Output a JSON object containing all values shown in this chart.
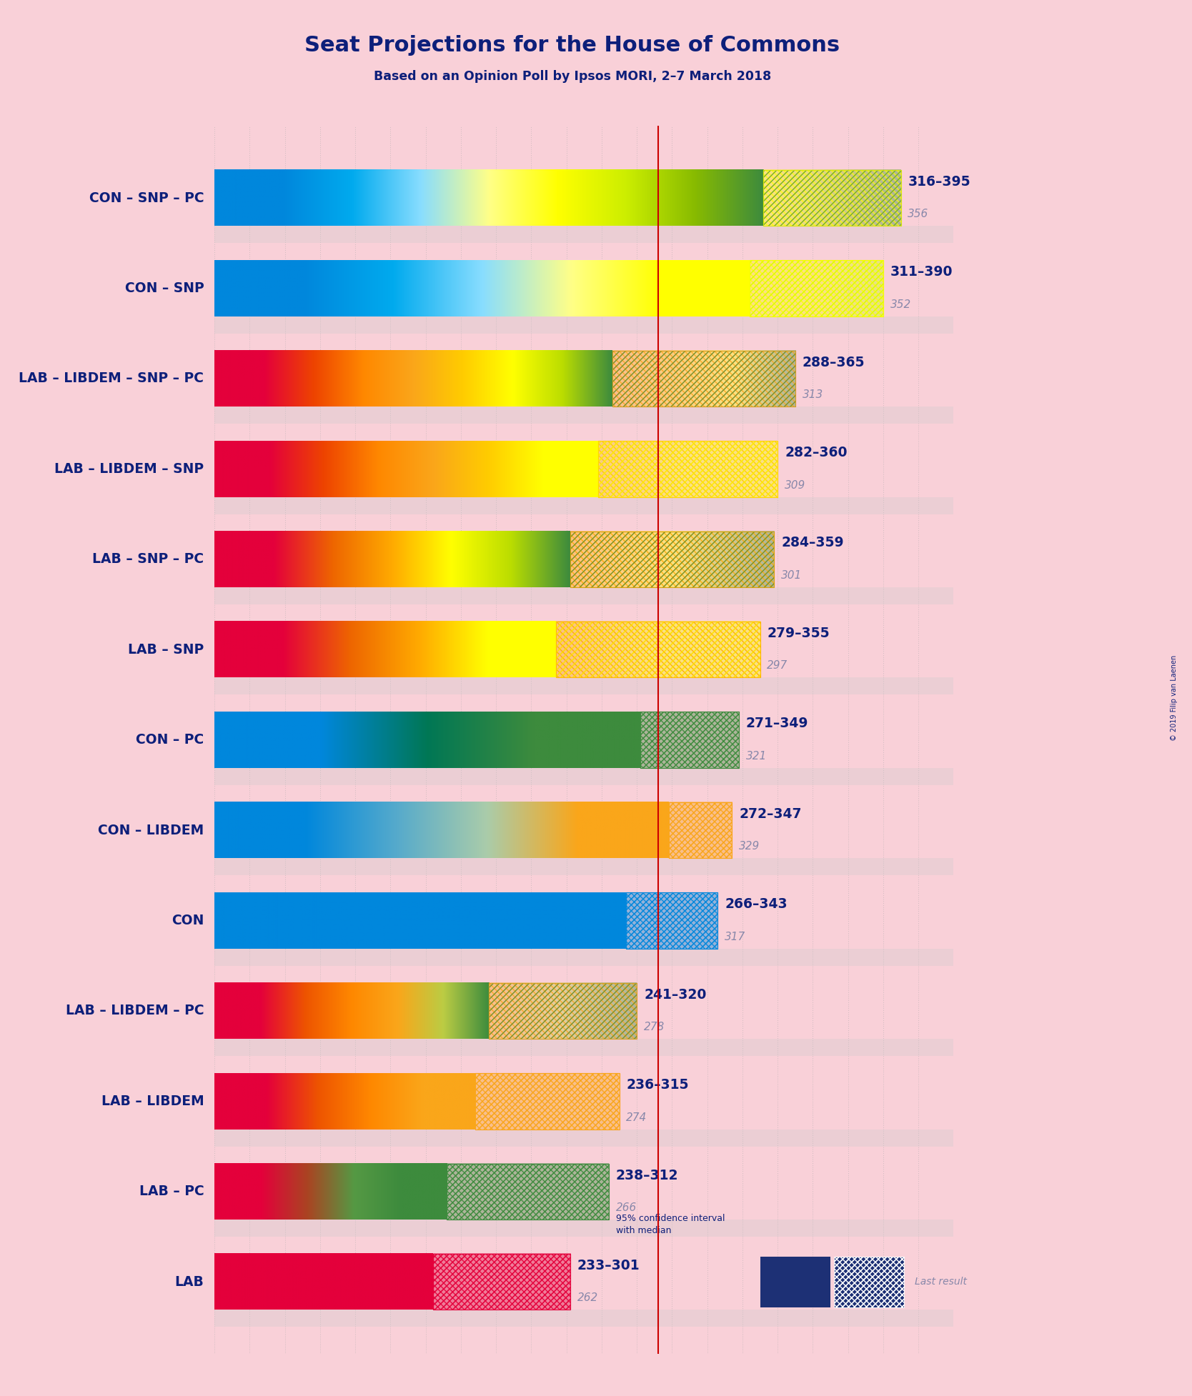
{
  "title": "Seat Projections for the House of Commons",
  "subtitle": "Based on an Opinion Poll by Ipsos MORI, 2–7 March 2018",
  "background_color": "#f9d0d8",
  "title_color": "#0d1f7a",
  "copyright": "© 2019 Filip van Laenen",
  "majority_line": 326,
  "x_min": 200,
  "x_max": 410,
  "coalitions": [
    {
      "label": "CON – SNP – PC",
      "low": 316,
      "median": 356,
      "high": 395,
      "colors": [
        "#0087dc",
        "#0087dc",
        "#00aaee",
        "#88ddff",
        "#ffff88",
        "#ffff00",
        "#ccee00",
        "#88bb00",
        "#3d8b3d"
      ],
      "hatch_colors": [
        "#ffff00",
        "#ccee00",
        "#88bb00",
        "#3d8b3d"
      ]
    },
    {
      "label": "CON – SNP",
      "low": 311,
      "median": 352,
      "high": 390,
      "colors": [
        "#0087dc",
        "#0087dc",
        "#00aaee",
        "#88ddff",
        "#ffff88",
        "#ffff00",
        "#ffff00"
      ],
      "hatch_colors": [
        "#ffff00",
        "#ffff00",
        "#ccff00"
      ]
    },
    {
      "label": "LAB – LIBDEM – SNP – PC",
      "low": 288,
      "median": 313,
      "high": 365,
      "colors": [
        "#e4003b",
        "#e4003b",
        "#ee4400",
        "#ff8800",
        "#faa61a",
        "#ffcc00",
        "#ffff00",
        "#bbdd00",
        "#3d8b3d"
      ],
      "hatch_colors": [
        "#faa61a",
        "#ffcc00",
        "#ffff00",
        "#3d8b3d"
      ]
    },
    {
      "label": "LAB – LIBDEM – SNP",
      "low": 282,
      "median": 309,
      "high": 360,
      "colors": [
        "#e4003b",
        "#e4003b",
        "#ee4400",
        "#ff8800",
        "#faa61a",
        "#ffcc00",
        "#ffff00",
        "#ffff00"
      ],
      "hatch_colors": [
        "#ffcc00",
        "#ffff00",
        "#ffff00"
      ]
    },
    {
      "label": "LAB – SNP – PC",
      "low": 284,
      "median": 301,
      "high": 359,
      "colors": [
        "#e4003b",
        "#e4003b",
        "#ee6600",
        "#ffaa00",
        "#ffff00",
        "#bbdd00",
        "#3d8b3d"
      ],
      "hatch_colors": [
        "#ffaa00",
        "#ffff00",
        "#3d8b3d"
      ]
    },
    {
      "label": "LAB – SNP",
      "low": 279,
      "median": 297,
      "high": 355,
      "colors": [
        "#e4003b",
        "#e4003b",
        "#ee6600",
        "#ffaa00",
        "#ffff00",
        "#ffff00"
      ],
      "hatch_colors": [
        "#ffaa00",
        "#ffff00",
        "#ffff00"
      ]
    },
    {
      "label": "CON – PC",
      "low": 271,
      "median": 321,
      "high": 349,
      "colors": [
        "#0087dc",
        "#0087dc",
        "#007755",
        "#3d8b3d",
        "#3d8b3d"
      ],
      "hatch_colors": [
        "#3d8b3d",
        "#3d8b3d"
      ]
    },
    {
      "label": "CON – LIBDEM",
      "low": 272,
      "median": 329,
      "high": 347,
      "colors": [
        "#0087dc",
        "#0087dc",
        "#55aacc",
        "#aaccaa",
        "#faa61a",
        "#faa61a"
      ],
      "hatch_colors": [
        "#faa61a",
        "#faa61a"
      ]
    },
    {
      "label": "CON",
      "low": 266,
      "median": 317,
      "high": 343,
      "colors": [
        "#0087dc",
        "#0087dc",
        "#0087dc"
      ],
      "hatch_colors": [
        "#0087dc",
        "#0087dc"
      ]
    },
    {
      "label": "LAB – LIBDEM – PC",
      "low": 241,
      "median": 278,
      "high": 320,
      "colors": [
        "#e4003b",
        "#e4003b",
        "#ee5500",
        "#ff8800",
        "#faa61a",
        "#bbcc44",
        "#3d8b3d"
      ],
      "hatch_colors": [
        "#faa61a",
        "#bbcc44",
        "#3d8b3d"
      ]
    },
    {
      "label": "LAB – LIBDEM",
      "low": 236,
      "median": 274,
      "high": 315,
      "colors": [
        "#e4003b",
        "#e4003b",
        "#ee5500",
        "#ff8800",
        "#faa61a",
        "#faa61a"
      ],
      "hatch_colors": [
        "#faa61a",
        "#faa61a"
      ]
    },
    {
      "label": "LAB – PC",
      "low": 238,
      "median": 266,
      "high": 312,
      "colors": [
        "#e4003b",
        "#e4003b",
        "#aa4422",
        "#559944",
        "#3d8b3d",
        "#3d8b3d"
      ],
      "hatch_colors": [
        "#3d8b3d",
        "#3d8b3d"
      ]
    },
    {
      "label": "LAB",
      "low": 233,
      "median": 262,
      "high": 301,
      "colors": [
        "#e4003b",
        "#e4003b",
        "#e4003b"
      ],
      "hatch_colors": [
        "#e4003b",
        "#e4003b"
      ]
    }
  ]
}
